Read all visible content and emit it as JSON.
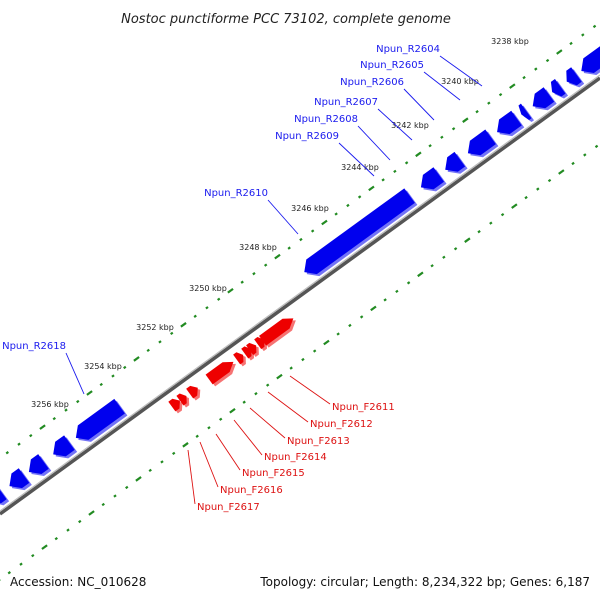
{
  "title": "Nostoc punctiforme PCC 73102, complete genome",
  "footer": {
    "accession": "Accession: NC_010628",
    "summary": "Topology: circular; Length: 8,234,322 bp; Genes: 6,187"
  },
  "colors": {
    "reverse_gene": "#0000ee",
    "forward_gene": "#ee0000",
    "backbone": "#888888",
    "tick": "#228b22",
    "reverse_label": "#1a1aee",
    "forward_label": "#dd1111"
  },
  "kbp_ticks": [
    "3238 kbp",
    "3240 kbp",
    "3242 kbp",
    "3244 kbp",
    "3246 kbp",
    "3248 kbp",
    "3250 kbp",
    "3252 kbp",
    "3254 kbp",
    "3256 kbp"
  ],
  "reverse_labels": [
    "Npun_R2604",
    "Npun_R2605",
    "Npun_R2606",
    "Npun_R2607",
    "Npun_R2608",
    "Npun_R2609",
    "Npun_R2610",
    "Npun_R2618"
  ],
  "forward_labels": [
    "Npun_F2611",
    "Npun_F2612",
    "Npun_F2613",
    "Npun_F2614",
    "Npun_F2615",
    "Npun_F2616",
    "Npun_F2617"
  ]
}
